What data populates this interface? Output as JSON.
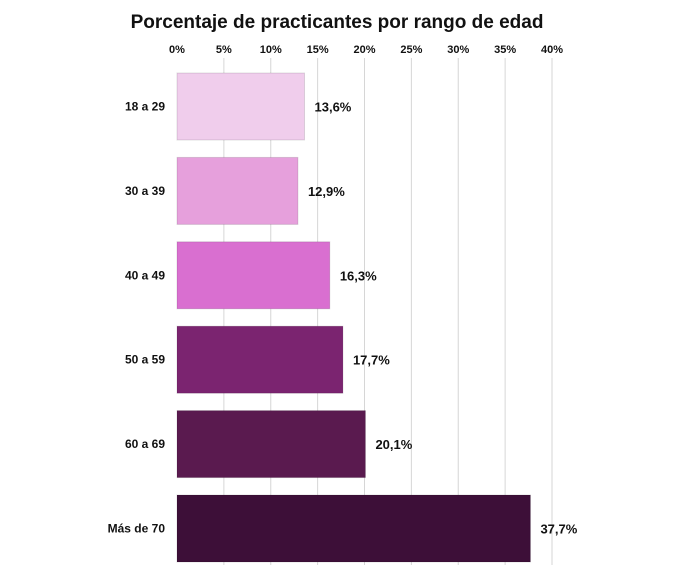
{
  "chart_data": {
    "type": "bar",
    "orientation": "horizontal",
    "title": "Porcentaje de practicantes por rango de edad",
    "xlabel": "",
    "ylabel": "",
    "xlim": [
      0,
      40
    ],
    "x_ticks": [
      "0%",
      "5%",
      "10%",
      "15%",
      "20%",
      "25%",
      "30%",
      "35%",
      "40%"
    ],
    "x_tick_values": [
      0,
      5,
      10,
      15,
      20,
      25,
      30,
      35,
      40
    ],
    "axis_position": "top",
    "grid": true,
    "categories": [
      "18 a 29",
      "30 a 39",
      "40 a 49",
      "50 a 59",
      "60 a 69",
      "Más de 70"
    ],
    "values": [
      13.6,
      12.9,
      16.3,
      17.7,
      20.1,
      37.7
    ],
    "value_labels": [
      "13,6%",
      "12,9%",
      "16,3%",
      "17,7%",
      "20,1%",
      "37,7%"
    ],
    "colors": [
      "#f0cdec",
      "#e6a0dc",
      "#d96fd0",
      "#7b2470",
      "#5a1a4f",
      "#3d0f38"
    ],
    "grid_color": "#d6d6d6"
  }
}
